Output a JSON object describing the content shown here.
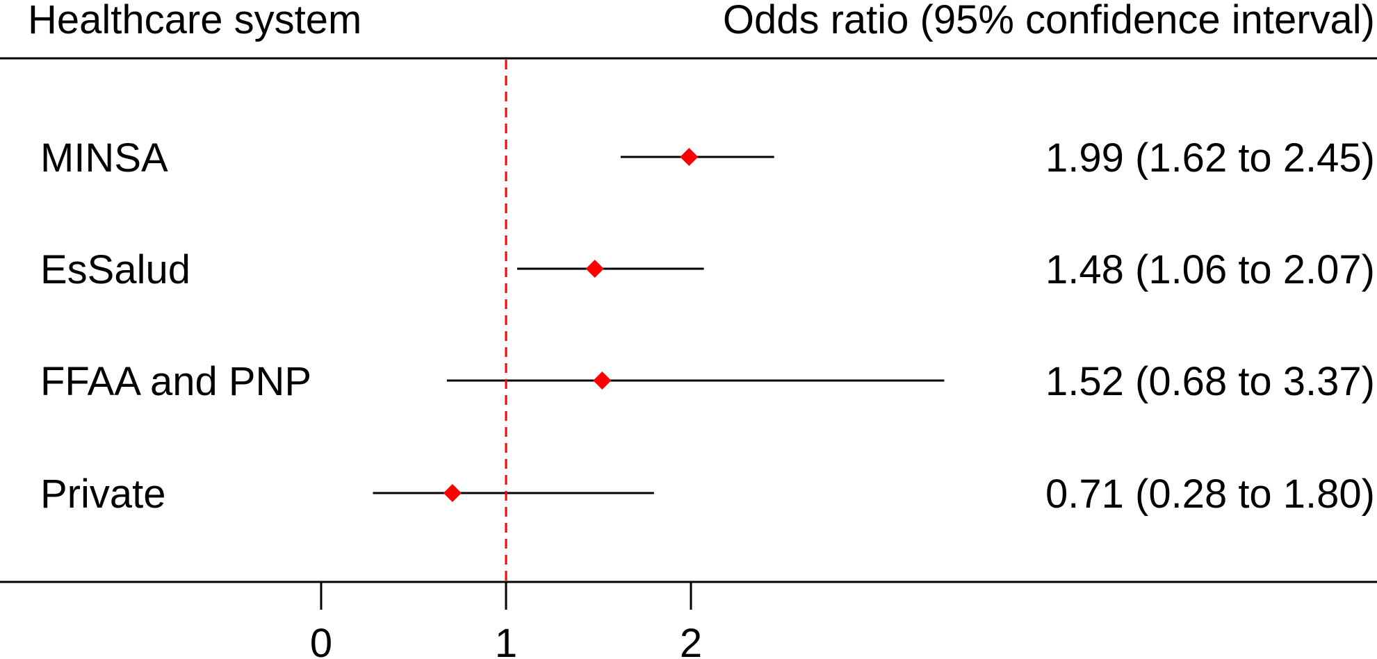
{
  "chart_data": {
    "type": "forest",
    "column_headers": {
      "left": "Healthcare system",
      "right": "Odds ratio (95% confidence interval)"
    },
    "rows": [
      {
        "label": "MINSA",
        "estimate": 1.99,
        "ci_low": 1.62,
        "ci_high": 2.45,
        "text": "1.99 (1.62 to 2.45)"
      },
      {
        "label": "EsSalud",
        "estimate": 1.48,
        "ci_low": 1.06,
        "ci_high": 2.07,
        "text": "1.48 (1.06 to 2.07)"
      },
      {
        "label": "FFAA and PNP",
        "estimate": 1.52,
        "ci_low": 0.68,
        "ci_high": 3.37,
        "text": "1.52 (0.68 to 3.37)"
      },
      {
        "label": "Private",
        "estimate": 0.71,
        "ci_low": 0.28,
        "ci_high": 1.8,
        "text": "0.71 (0.28 to 1.80)"
      }
    ],
    "x_ticks": [
      0,
      1,
      2
    ],
    "reference_line": 1,
    "colors": {
      "marker": "#ff0000",
      "reference_line": "#ff0000",
      "ci_line": "#000000"
    }
  }
}
